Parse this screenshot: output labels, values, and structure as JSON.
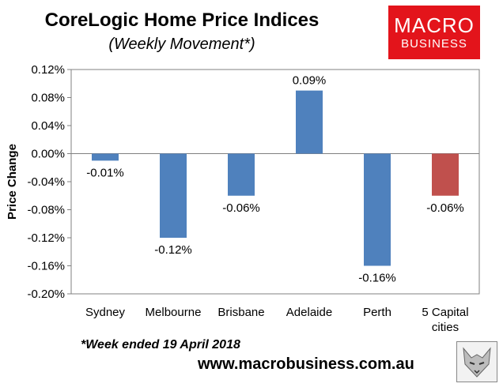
{
  "header": {
    "title": "CoreLogic Home Price Indices",
    "subtitle": "(Weekly Movement*)"
  },
  "logo": {
    "line1": "MACRO",
    "line2": "BUSINESS",
    "color": "#e3141b"
  },
  "footer": {
    "footnote": "*Week ended 19 April 2018",
    "url": "www.macrobusiness.com.au"
  },
  "chart_data": {
    "type": "bar",
    "title": "CoreLogic Home Price Indices",
    "subtitle": "(Weekly Movement*)",
    "xlabel": "",
    "ylabel": "Price Change",
    "ylim": [
      -0.2,
      0.12
    ],
    "ytick_values": [
      0.12,
      0.08,
      0.04,
      0.0,
      -0.04,
      -0.08,
      -0.12,
      -0.16,
      -0.2
    ],
    "ytick_labels": [
      "0.12%",
      "0.08%",
      "0.04%",
      "0.00%",
      "-0.04%",
      "-0.08%",
      "-0.12%",
      "-0.16%",
      "-0.20%"
    ],
    "categories": [
      "Sydney",
      "Melbourne",
      "Brisbane",
      "Adelaide",
      "Perth",
      "5 Capital cities"
    ],
    "category_lines": [
      [
        "Sydney"
      ],
      [
        "Melbourne"
      ],
      [
        "Brisbane"
      ],
      [
        "Adelaide"
      ],
      [
        "Perth"
      ],
      [
        "5 Capital",
        "cities"
      ]
    ],
    "values": [
      -0.01,
      -0.12,
      -0.06,
      0.09,
      -0.16,
      -0.06
    ],
    "data_labels": [
      "-0.01%",
      "-0.12%",
      "-0.06%",
      "0.09%",
      "-0.16%",
      "-0.06%"
    ],
    "bar_colors": [
      "#4f81bd",
      "#4f81bd",
      "#4f81bd",
      "#4f81bd",
      "#4f81bd",
      "#c0504d"
    ],
    "grid": false,
    "legend": "none"
  }
}
